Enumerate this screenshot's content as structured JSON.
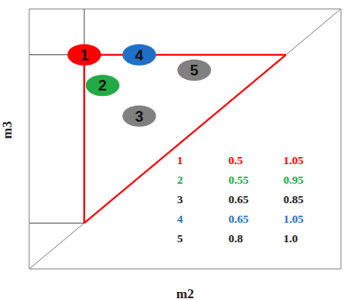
{
  "chart_data": {
    "type": "scatter",
    "xlabel": "m2",
    "ylabel": "m3",
    "xlim": [
      0.35,
      1.2
    ],
    "ylim": [
      0.35,
      1.2
    ],
    "xticks": [],
    "yticks": [],
    "tick_labels": false,
    "diagonal": [
      [
        0.35,
        0.35
      ],
      [
        1.2,
        1.2
      ]
    ],
    "region": [
      [
        0.5,
        0.5
      ],
      [
        0.5,
        1.05
      ],
      [
        1.05,
        1.05
      ]
    ],
    "guides": [
      [
        [
          0.5,
          1.05
        ],
        [
          0.5,
          1.2
        ]
      ],
      [
        [
          0.35,
          1.05
        ],
        [
          0.5,
          1.05
        ]
      ],
      [
        [
          0.35,
          0.5
        ],
        [
          0.5,
          0.5
        ]
      ]
    ],
    "points": [
      {
        "label": "1",
        "m2": 0.5,
        "m3": 1.05,
        "color": "#ff0000",
        "text_color": "#ff0000"
      },
      {
        "label": "2",
        "m2": 0.55,
        "m3": 0.95,
        "color": "#22aa44",
        "text_color": "#22aa44"
      },
      {
        "label": "3",
        "m2": 0.65,
        "m3": 0.85,
        "color": "#808080",
        "text_color": "#222222"
      },
      {
        "label": "4",
        "m2": 0.65,
        "m3": 1.05,
        "color": "#1f6fc8",
        "text_color": "#1f6fc8"
      },
      {
        "label": "5",
        "m2": 0.8,
        "m3": 1.0,
        "m3_label": "1.0",
        "color": "#808080",
        "text_color": "#222222"
      }
    ]
  }
}
